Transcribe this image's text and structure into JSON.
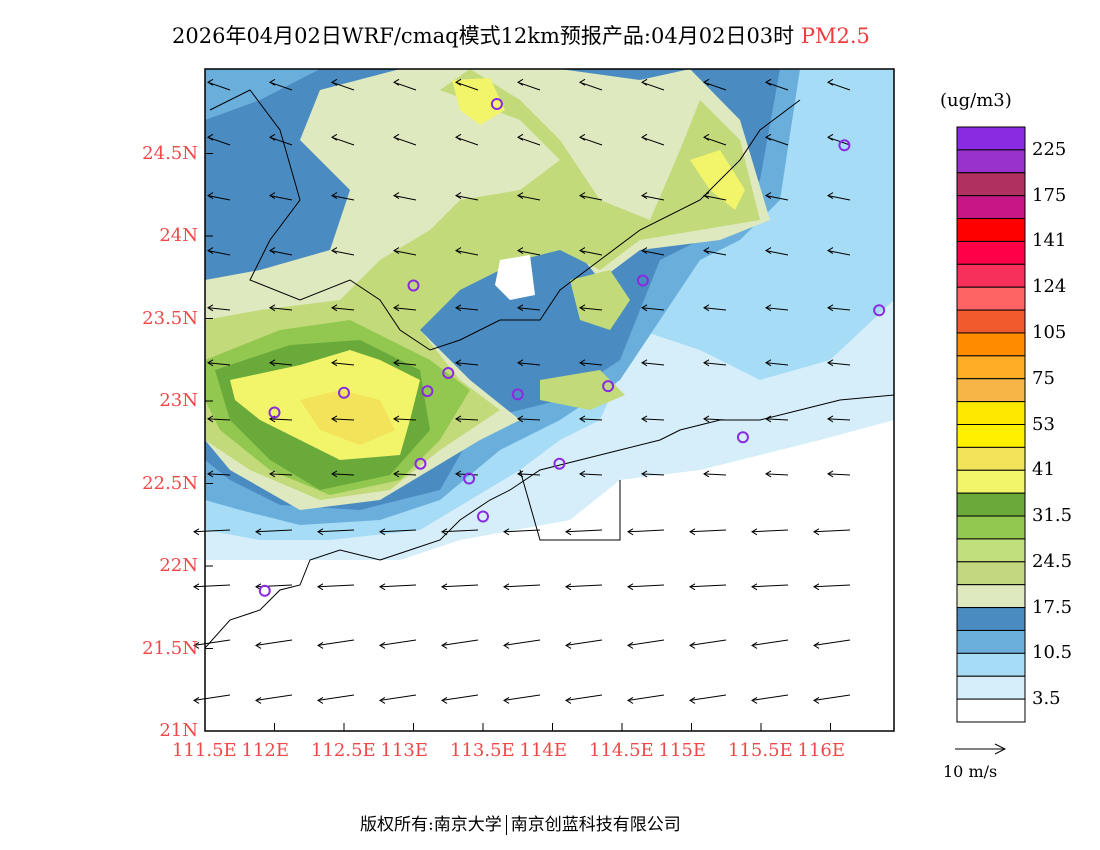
{
  "title": {
    "main": "2026年04月02日WRF/cmaq模式12km预报产品:04月02日03时",
    "species": "PM2.5"
  },
  "colors": {
    "axis_label": "#f04848",
    "white": "#ffffff",
    "pale_blue": "#d6eef9",
    "light_blue": "#a6dcf5",
    "mid_blue": "#6aafdc",
    "dark_blue": "#4a8cc2",
    "pale_green": "#dfe9c0",
    "light_green": "#c2da7a",
    "green": "#93c850",
    "dark_green": "#6aaa3a",
    "yellow_green": "#f2f56a",
    "yellow": "#f3e35a"
  },
  "lat_labels": [
    {
      "v": 24.5,
      "t": "24.5N"
    },
    {
      "v": 24,
      "t": "24N"
    },
    {
      "v": 23.5,
      "t": "23.5N"
    },
    {
      "v": 23,
      "t": "23N"
    },
    {
      "v": 22.5,
      "t": "22.5N"
    },
    {
      "v": 22,
      "t": "22N"
    },
    {
      "v": 21.5,
      "t": "21.5N"
    },
    {
      "v": 21,
      "t": "21N"
    }
  ],
  "lon_labels": [
    {
      "v": 111.5,
      "t": "111.5E"
    },
    {
      "v": 112,
      "t": "112E"
    },
    {
      "v": 112.5,
      "t": "112.5E"
    },
    {
      "v": 113,
      "t": "113E"
    },
    {
      "v": 113.5,
      "t": "113.5E"
    },
    {
      "v": 114,
      "t": "114E"
    },
    {
      "v": 114.5,
      "t": "114.5E"
    },
    {
      "v": 115,
      "t": "115E"
    },
    {
      "v": 115.5,
      "t": "115.5E"
    },
    {
      "v": 116,
      "t": "116E"
    }
  ],
  "legend": {
    "unit": "(ug/m3)",
    "colors": [
      "#8a2be2",
      "#9932cc",
      "#b03060",
      "#c71585",
      "#ff0000",
      "#ff0048",
      "#f6305a",
      "#ff6464",
      "#f05a2d",
      "#ff8c00",
      "#ffac26",
      "#f7b548",
      "#ffe800",
      "#fff000",
      "#f3e35a",
      "#f2f56a",
      "#6aaa3a",
      "#93c850",
      "#c2df7e",
      "#c2d77e",
      "#dfe9c0",
      "#4a8cc2",
      "#6aafdc",
      "#a6dcf5",
      "#d6eef9",
      "#ffffff"
    ],
    "labels": [
      "225",
      "175",
      "141",
      "124",
      "105",
      "75",
      "53",
      "41",
      "31.5",
      "24.5",
      "17.5",
      "10.5",
      "3.5"
    ]
  },
  "wind_ref": "10 m/s",
  "copyright": {
    "left": "版权所有:南京大学",
    "right": "南京创蓝科技有限公司"
  },
  "stations": [
    [
      113.6,
      24.8
    ],
    [
      116.1,
      24.55
    ],
    [
      113.0,
      23.7
    ],
    [
      114.65,
      23.73
    ],
    [
      116.35,
      23.55
    ],
    [
      112.5,
      23.05
    ],
    [
      113.25,
      23.17
    ],
    [
      113.1,
      23.06
    ],
    [
      113.75,
      23.04
    ],
    [
      114.4,
      23.09
    ],
    [
      112.0,
      22.93
    ],
    [
      113.05,
      22.62
    ],
    [
      113.4,
      22.53
    ],
    [
      114.05,
      22.62
    ],
    [
      115.37,
      22.78
    ],
    [
      113.5,
      22.3
    ],
    [
      111.93,
      21.85
    ]
  ],
  "wind_vectors": [
    [
      -1,
      0.35
    ],
    [
      -1,
      0.2
    ],
    [
      -1,
      0.1
    ],
    [
      -1,
      0.05
    ],
    [
      -1,
      -0.05
    ],
    [
      -1,
      -0.15
    ]
  ]
}
